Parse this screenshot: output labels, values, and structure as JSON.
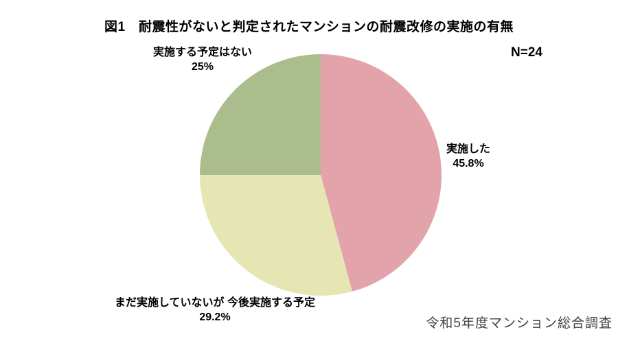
{
  "chart": {
    "title": "図1　耐震性がないと判定されたマンションの耐震改修の実施の有無",
    "sample_size": "N=24",
    "source": "令和5年度マンション総合調査"
  },
  "chart_data": {
    "type": "pie",
    "title": "図1　耐震性がないと判定されたマンションの耐震改修の実施の有無",
    "sample_size": "N=24",
    "source": "令和5年度マンション総合調査",
    "start_angle_deg": 0,
    "direction": "clockwise",
    "legend": "none",
    "labels_position": "outside",
    "background_color": "#ffffff",
    "slices": [
      {
        "label": "実施した",
        "value": 45.8,
        "display": "45.8%",
        "color": "#e3a3ab"
      },
      {
        "label": "まだ実施していないが 今後実施する予定",
        "value": 29.2,
        "display": "29.2%",
        "color": "#e6e5b4"
      },
      {
        "label": "実施する予定はない",
        "value": 25,
        "display": "25%",
        "color": "#abbd8c"
      }
    ]
  }
}
